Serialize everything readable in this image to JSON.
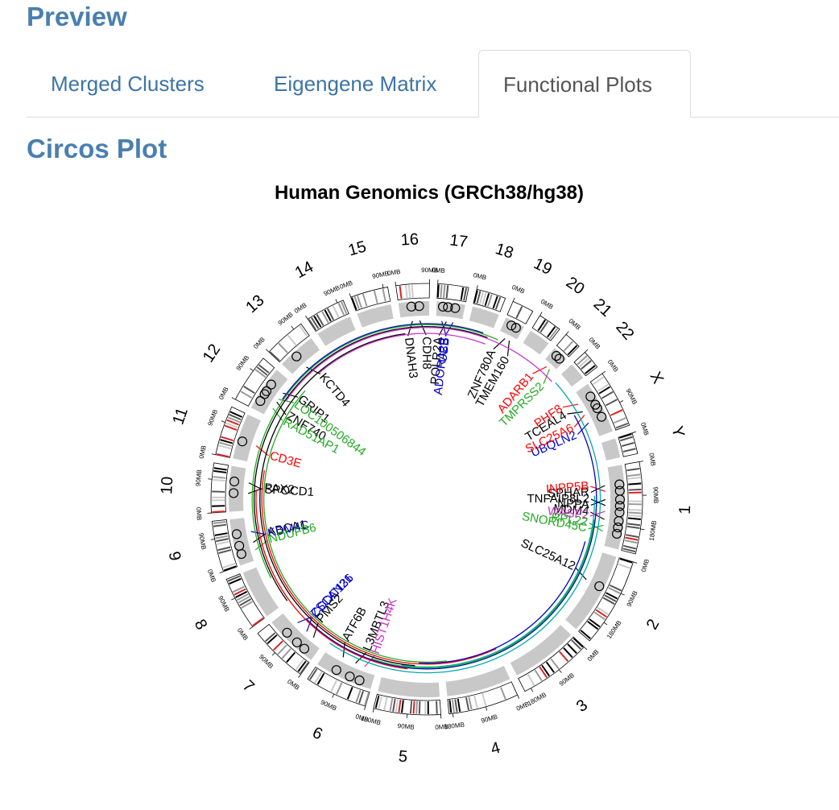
{
  "header": {
    "title": "Preview"
  },
  "tabs": [
    {
      "label": "Merged Clusters",
      "active": false
    },
    {
      "label": "Eigengene Matrix",
      "active": false
    },
    {
      "label": "Functional Plots",
      "active": true
    }
  ],
  "section": {
    "title": "Circos Plot"
  },
  "chart_data": {
    "type": "circos",
    "title": "Human Genomics (GRCh38/hg38)",
    "chromosomes": [
      "1",
      "2",
      "3",
      "4",
      "5",
      "6",
      "7",
      "8",
      "9",
      "10",
      "11",
      "12",
      "13",
      "14",
      "15",
      "16",
      "17",
      "18",
      "19",
      "20",
      "21",
      "22",
      "X",
      "Y"
    ],
    "chromosome_sizes_mb": [
      248,
      242,
      198,
      190,
      181,
      171,
      159,
      145,
      138,
      134,
      135,
      133,
      114,
      107,
      102,
      90,
      83,
      80,
      59,
      64,
      47,
      51,
      156,
      57
    ],
    "tick_labels": [
      "0MB",
      "90MB",
      "180MB"
    ],
    "gene_labels": [
      {
        "name": "TCEAL4",
        "color": "#000000",
        "chr": "X"
      },
      {
        "name": "NPPA",
        "color": "#000000",
        "chr": "1"
      },
      {
        "name": "POLR2A",
        "color": "#000000",
        "chr": "17"
      },
      {
        "name": "UBQLN2",
        "color": "#0000cc",
        "chr": "X"
      },
      {
        "name": "PHF8",
        "color": "#ff0000",
        "chr": "X"
      },
      {
        "name": "SLC25A6",
        "color": "#ff0000",
        "chr": "X"
      },
      {
        "name": "ADARB1",
        "color": "#ff0000",
        "chr": "21"
      },
      {
        "name": "TMPRSS2",
        "color": "#22aa22",
        "chr": "21"
      },
      {
        "name": "ZNF780A",
        "color": "#000000",
        "chr": "19"
      },
      {
        "name": "TMEM160",
        "color": "#000000",
        "chr": "19"
      },
      {
        "name": "ADORA2B",
        "color": "#0000cc",
        "chr": "17"
      },
      {
        "name": "UBB",
        "color": "#0000cc",
        "chr": "17"
      },
      {
        "name": "DNAH3",
        "color": "#000000",
        "chr": "16"
      },
      {
        "name": "CDH8",
        "color": "#000000",
        "chr": "16"
      },
      {
        "name": "ZNF740",
        "color": "#000000",
        "chr": "12"
      },
      {
        "name": "GRIP1",
        "color": "#000000",
        "chr": "12"
      },
      {
        "name": "RAD51AP1",
        "color": "#22aa22",
        "chr": "12"
      },
      {
        "name": "LOC100506844",
        "color": "#22aa22",
        "chr": "12"
      },
      {
        "name": "CD3E",
        "color": "#ff0000",
        "chr": "11"
      },
      {
        "name": "PAX2",
        "color": "#000000",
        "chr": "10"
      },
      {
        "name": "SPOCD1",
        "color": "#000000",
        "chr": "10"
      },
      {
        "name": "ABCA1",
        "color": "#000000",
        "chr": "9"
      },
      {
        "name": "KDM4C",
        "color": "#0000cc",
        "chr": "9"
      },
      {
        "name": "CCDC136",
        "color": "#0000cc",
        "chr": "7"
      },
      {
        "name": "ZSCAN21",
        "color": "#0000cc",
        "chr": "7"
      },
      {
        "name": "PMS2",
        "color": "#000000",
        "chr": "7"
      },
      {
        "name": "L3MBTL3",
        "color": "#000000",
        "chr": "6"
      },
      {
        "name": "ATF6B",
        "color": "#000000",
        "chr": "6"
      },
      {
        "name": "HIST1H4K",
        "color": "#cc33cc",
        "chr": "6"
      },
      {
        "name": "NDUFB6",
        "color": "#22aa22",
        "chr": "9"
      },
      {
        "name": "SLC25A12",
        "color": "#000000",
        "chr": "2"
      },
      {
        "name": "KCTD4",
        "color": "#000000",
        "chr": "13"
      },
      {
        "name": "MDM4",
        "color": "#000000",
        "chr": "1"
      },
      {
        "name": "SPHAR",
        "color": "#000000",
        "chr": "1"
      },
      {
        "name": "TNFAIP8L2",
        "color": "#000000",
        "chr": "1"
      },
      {
        "name": "SNORD45C",
        "color": "#22aa22",
        "chr": "1"
      },
      {
        "name": "INPP5B",
        "color": "#ff0000",
        "chr": "1"
      },
      {
        "name": "WASF2",
        "color": "#cc33cc",
        "chr": "1"
      },
      {
        "name": "RPL22",
        "color": "#22aa22",
        "chr": "1"
      }
    ]
  }
}
